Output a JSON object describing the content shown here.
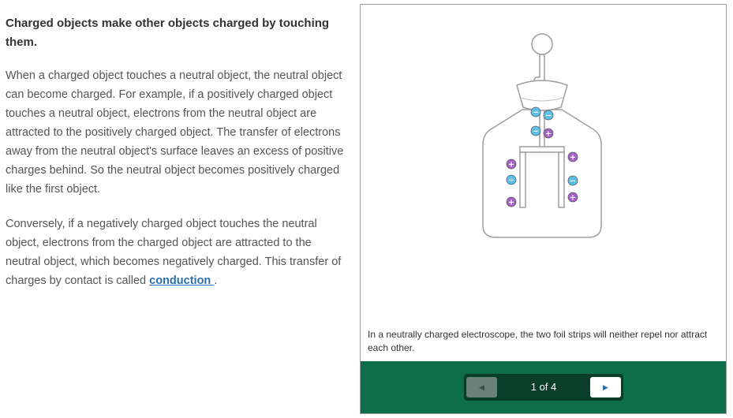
{
  "article": {
    "heading": "Charged objects make other objects charged by touching them.",
    "paragraph1": "When a charged object touches a neutral object, the neutral object can become charged. For example, if a positively charged object touches a neutral object, electrons from the neutral object are attracted to the positively charged object. The transfer of electrons away from the neutral object's surface leaves an excess of positive charges behind. So the neutral object becomes positively charged like the first object.",
    "paragraph2_text": "Conversely, if a negatively charged object touches the neutral object, electrons from the charged object are attracted to the neutral object, which becomes negatively charged. This transfer of charges by contact is called ",
    "paragraph2_link": "conduction ",
    "paragraph2_end": "."
  },
  "slideshow": {
    "caption": "In a neutrally charged electroscope, the two foil strips will neither repel nor attract each other.",
    "page_indicator": "1 of 4",
    "prev_icon": "triangle-left-icon",
    "next_icon": "triangle-right-icon"
  },
  "charges": {
    "negative_symbol": "−",
    "positive_symbol": "+",
    "negative_color": "#5bc0e8",
    "positive_color": "#a55fc9"
  }
}
